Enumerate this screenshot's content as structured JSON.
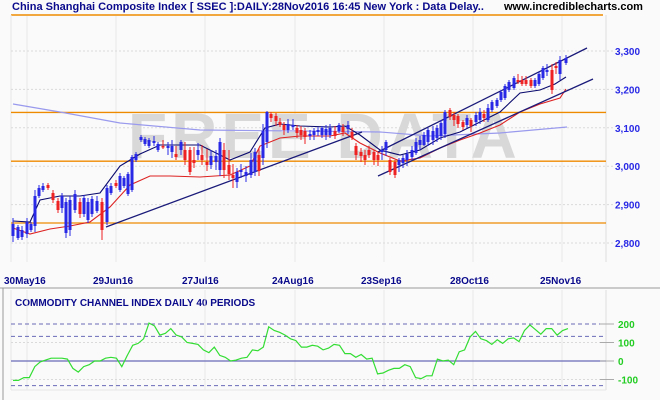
{
  "header": {
    "title": "China Shanghai Composite Index [ SSEC ]:DAILY:28Nov2016 16:45 New York : Data Delay..",
    "site": "www.incrediblecharts.com"
  },
  "watermark": "FREE DATA",
  "colors": {
    "up_candle": "#2828e6",
    "down_candle": "#ee2222",
    "ma_short": "#0a0a6e",
    "ma_mid": "#dd2222",
    "ma_long": "#9999ee",
    "support_lines": "#ee8a00",
    "trend_lines": "#1a1a7a",
    "cci_line": "#33dd33",
    "cci_ref": "#6a6ab8",
    "title_text": "#0a0a8c",
    "y_labels": "#2828e6"
  },
  "cci_panel": {
    "title": "COMMODITY CHANNEL INDEX DAILY 40 PERIODS"
  },
  "chart_data": [
    {
      "type": "candlestick",
      "title": "China Shanghai Composite Index [ SSEC ]: DAILY",
      "xlabel": "",
      "ylabel": "",
      "x_tick_labels": [
        "30May16",
        "29Jun16",
        "27Jul16",
        "24Aug16",
        "23Sep16",
        "28Oct16",
        "25Nov16"
      ],
      "y_tick_labels": [
        "3,300",
        "3,200",
        "3,100",
        "3,000",
        "2,900",
        "2,800"
      ],
      "y_ticks": [
        3300,
        3200,
        3100,
        3000,
        2900,
        2800
      ],
      "ylim": [
        2760,
        3395
      ],
      "grid": true,
      "horizontal_levels": [
        3395,
        3140,
        3013,
        2852
      ],
      "trend_lines": [
        {
          "name": "lower trendline 1",
          "from": [
            "29Jun16",
            2835
          ],
          "to": [
            "25Sep16",
            3120
          ]
        },
        {
          "name": "channel upper",
          "from": [
            "23Sep16",
            3020
          ],
          "to": [
            "28Nov16",
            3305
          ]
        },
        {
          "name": "channel lower",
          "from": [
            "23Sep16",
            2975
          ],
          "to": [
            "28Nov16",
            3225
          ]
        }
      ],
      "overlays": [
        "short moving average (dark blue)",
        "medium moving average (red)",
        "long moving average (light blue)"
      ],
      "ohlc_approx": [
        {
          "date": "30May16",
          "close": 2822
        },
        {
          "date": "13Jun16",
          "close": 2870
        },
        {
          "date": "29Jun16",
          "close": 2932
        },
        {
          "date": "14Jul16",
          "close": 3054
        },
        {
          "date": "27Jul16",
          "close": 2992
        },
        {
          "date": "08Aug16",
          "close": 3004
        },
        {
          "date": "16Aug16",
          "close": 3110
        },
        {
          "date": "24Aug16",
          "close": 3085
        },
        {
          "date": "09Sep16",
          "close": 3078
        },
        {
          "date": "23Sep16",
          "close": 3033
        },
        {
          "date": "30Sep16",
          "close": 3005
        },
        {
          "date": "14Oct16",
          "close": 3063
        },
        {
          "date": "28Oct16",
          "close": 3104
        },
        {
          "date": "11Nov16",
          "close": 3197
        },
        {
          "date": "25Nov16",
          "close": 3262
        },
        {
          "date": "28Nov16",
          "close": 3278
        }
      ],
      "watermark": "FREE DATA"
    },
    {
      "type": "line",
      "title": "COMMODITY CHANNEL INDEX DAILY 40 PERIODS",
      "x_tick_labels": [
        "30May16",
        "29Jun16",
        "27Jul16",
        "24Aug16",
        "23Sep16",
        "28Oct16",
        "25Nov16"
      ],
      "y_tick_labels": [
        "200",
        "100",
        "0",
        "-100"
      ],
      "ylim": [
        -150,
        260
      ],
      "reference_lines": [
        200,
        133,
        0,
        -133
      ],
      "series": [
        {
          "name": "CCI(40)",
          "values": [
            -105,
            -105,
            -90,
            -90,
            -30,
            -5,
            5,
            15,
            15,
            15,
            10,
            -40,
            -60,
            -30,
            -20,
            0,
            0,
            15,
            20,
            15,
            -30,
            30,
            85,
            95,
            120,
            205,
            190,
            140,
            150,
            175,
            140,
            130,
            100,
            95,
            90,
            60,
            45,
            75,
            30,
            20,
            0,
            5,
            15,
            20,
            60,
            55,
            75,
            185,
            165,
            155,
            140,
            120,
            110,
            75,
            75,
            85,
            80,
            60,
            70,
            90,
            85,
            40,
            40,
            20,
            35,
            10,
            15,
            -70,
            -65,
            -50,
            -40,
            -40,
            -20,
            -30,
            -90,
            -95,
            -80,
            -80,
            10,
            0,
            5,
            -20,
            50,
            60,
            130,
            160,
            120,
            110,
            90,
            115,
            95,
            120,
            125,
            105,
            165,
            195,
            170,
            145,
            175,
            175,
            140,
            165,
            175
          ]
        }
      ]
    }
  ]
}
